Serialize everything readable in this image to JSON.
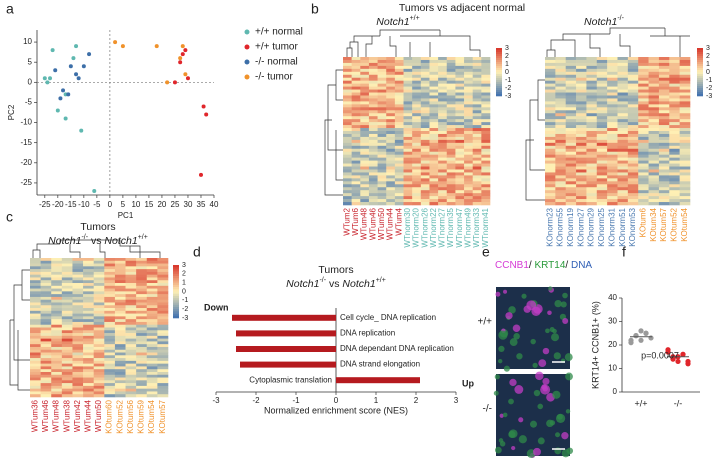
{
  "panels": [
    "a",
    "b",
    "c",
    "d",
    "e",
    "f"
  ],
  "chart_data": [
    {
      "type": "scatter",
      "xlabel": "PC1",
      "ylabel": "PC2",
      "xlim": [
        -28,
        40
      ],
      "ylim": [
        -28,
        13
      ],
      "xticks": [
        -25,
        -20,
        -15,
        -10,
        -5,
        0,
        5,
        10,
        15,
        20,
        25,
        30,
        35,
        40
      ],
      "yticks": [
        10,
        5,
        0,
        -5,
        -10,
        -15,
        -20,
        -25
      ],
      "series": [
        {
          "name": "+/+ normal",
          "color": "#5fb8b0",
          "x": [
            -22,
            -24,
            -23,
            -13,
            -14,
            -20,
            -17,
            -11,
            -17,
            -6,
            -25
          ],
          "y": [
            8,
            0,
            1,
            9,
            6,
            -7,
            -9,
            -12,
            -3,
            -27,
            1
          ]
        },
        {
          "name": "+/+ tumor",
          "color": "#e0262b",
          "x": [
            28,
            29,
            27,
            30,
            25,
            36,
            37,
            35
          ],
          "y": [
            7,
            8,
            5,
            1,
            0,
            -6,
            -8,
            -23
          ]
        },
        {
          "name": "-/- normal",
          "color": "#3d6fa8",
          "x": [
            -21,
            -18,
            -16,
            -13,
            -10,
            -15,
            -19,
            -8,
            -12
          ],
          "y": [
            3,
            -2,
            -3,
            2,
            4,
            4,
            -4,
            7,
            1
          ]
        },
        {
          "name": "-/- tumor",
          "color": "#f0922b",
          "x": [
            2,
            5,
            28,
            29,
            22,
            18,
            27
          ],
          "y": [
            10,
            9,
            9,
            2,
            0,
            9,
            6
          ]
        }
      ]
    },
    {
      "type": "heatmap",
      "title": "Tumors vs adjacent normal",
      "subtitle": {
        "text": "Notch1",
        "sup": "+/+"
      },
      "colorbar_ticks": [
        3,
        2,
        1,
        0,
        -1,
        -2,
        -3
      ],
      "columns": [
        {
          "label": "WTum2",
          "color": "#c8232c"
        },
        {
          "label": "WTum6",
          "color": "#c8232c"
        },
        {
          "label": "WTum48",
          "color": "#c8232c"
        },
        {
          "label": "WTum46",
          "color": "#c8232c"
        },
        {
          "label": "WTum50",
          "color": "#c8232c"
        },
        {
          "label": "WTum44",
          "color": "#c8232c"
        },
        {
          "label": "WTum4",
          "color": "#c8232c"
        },
        {
          "label": "WTnorm30",
          "color": "#5fb8b0"
        },
        {
          "label": "WTnorm20",
          "color": "#5fb8b0"
        },
        {
          "label": "WTnorm26",
          "color": "#5fb8b0"
        },
        {
          "label": "WTnorm22",
          "color": "#5fb8b0"
        },
        {
          "label": "WTnorm27",
          "color": "#5fb8b0"
        },
        {
          "label": "WTnorm35",
          "color": "#5fb8b0"
        },
        {
          "label": "WTnorm47",
          "color": "#5fb8b0"
        },
        {
          "label": "WTnorm49",
          "color": "#5fb8b0"
        },
        {
          "label": "WTnorm33",
          "color": "#5fb8b0"
        },
        {
          "label": "WTnorm41",
          "color": "#5fb8b0"
        }
      ]
    },
    {
      "type": "heatmap",
      "subtitle": {
        "text": "Notch1",
        "sup": "-/-"
      },
      "colorbar_ticks": [
        3,
        2,
        1,
        0,
        -1,
        -2,
        -3
      ],
      "columns": [
        {
          "label": "KOnorm23",
          "color": "#4a79b0"
        },
        {
          "label": "KOnorm55",
          "color": "#4a79b0"
        },
        {
          "label": "KOnorm19",
          "color": "#4a79b0"
        },
        {
          "label": "KOnorm27",
          "color": "#4a79b0"
        },
        {
          "label": "KOnorm29",
          "color": "#4a79b0"
        },
        {
          "label": "KOnorm25",
          "color": "#4a79b0"
        },
        {
          "label": "KOnorm31",
          "color": "#4a79b0"
        },
        {
          "label": "KOnorm51",
          "color": "#4a79b0"
        },
        {
          "label": "KOnorm53",
          "color": "#4a79b0"
        },
        {
          "label": "KOtum6",
          "color": "#f0922b"
        },
        {
          "label": "KOtum34",
          "color": "#f0922b"
        },
        {
          "label": "KOtum57",
          "color": "#f0922b"
        },
        {
          "label": "KOtum52",
          "color": "#f0922b"
        },
        {
          "label": "KOtum54",
          "color": "#f0922b"
        }
      ]
    },
    {
      "type": "heatmap",
      "title": "Tumors",
      "subtitle": [
        {
          "text": "Notch1",
          "sup": "-/-"
        },
        {
          "text": " vs "
        },
        {
          "text": "Notch1",
          "sup": "+/+"
        }
      ],
      "colorbar_ticks": [
        3,
        2,
        1,
        0,
        -1,
        -2,
        -3
      ],
      "columns": [
        {
          "label": "WTum36",
          "color": "#c8232c"
        },
        {
          "label": "WTum46",
          "color": "#c8232c"
        },
        {
          "label": "WTum48",
          "color": "#c8232c"
        },
        {
          "label": "WTum38",
          "color": "#c8232c"
        },
        {
          "label": "WTum42",
          "color": "#c8232c"
        },
        {
          "label": "WTum44",
          "color": "#c8232c"
        },
        {
          "label": "WTum50",
          "color": "#c8232c"
        },
        {
          "label": "KOtum60",
          "color": "#f0922b"
        },
        {
          "label": "KOtum52",
          "color": "#f0922b"
        },
        {
          "label": "KOtum56",
          "color": "#f0922b"
        },
        {
          "label": "KOtum59",
          "color": "#f0922b"
        },
        {
          "label": "KOtum54",
          "color": "#f0922b"
        },
        {
          "label": "KOtum57",
          "color": "#f0922b"
        }
      ]
    },
    {
      "type": "barh",
      "title": "Tumors",
      "subtitle": [
        {
          "text": "Notch1",
          "sup": "-/-"
        },
        {
          "text": " vs "
        },
        {
          "text": "Notch1",
          "sup": "+/+"
        }
      ],
      "categories": [
        "Cell cycle_ DNA replication",
        "DNA replication",
        "DNA dependant DNA replication",
        "DNA strand elongation",
        "Cytoplasmic translation"
      ],
      "values": [
        -2.6,
        -2.5,
        -2.5,
        -2.4,
        2.1
      ],
      "color": "#b51a1f",
      "xlim": [
        -3,
        3
      ],
      "xticks": [
        -3,
        -2,
        -1,
        0,
        1,
        2,
        3
      ],
      "xlabel": "Normalized enrichment score (NES)",
      "annotations": [
        "Down",
        "Up"
      ]
    },
    {
      "type": "image",
      "title": [
        {
          "text": "CCNB1",
          "color": "#d63cd6"
        },
        {
          "text": "/ ",
          "color": "#222222"
        },
        {
          "text": "KRT14",
          "color": "#2a9a3a"
        },
        {
          "text": "/ ",
          "color": "#222222"
        },
        {
          "text": "DNA",
          "color": "#2f5fb5"
        }
      ],
      "rows": [
        "+/+",
        "-/-"
      ]
    },
    {
      "type": "strip",
      "ylabel": "KRT14+ CCNB1+ (%)",
      "categories": [
        "+/+",
        "-/-"
      ],
      "ylim": [
        0,
        40
      ],
      "yticks": [
        0,
        10,
        20,
        30,
        40
      ],
      "series": [
        {
          "color": "#9a9a9a",
          "values": [
            22,
            24,
            26,
            25,
            23,
            21,
            24,
            22,
            25
          ]
        },
        {
          "color": "#e0262b",
          "values": [
            17,
            15,
            13,
            16,
            12,
            18,
            14,
            15,
            16,
            13
          ]
        }
      ],
      "means": [
        23.5,
        15
      ],
      "annotation": "p=0.0007"
    }
  ]
}
